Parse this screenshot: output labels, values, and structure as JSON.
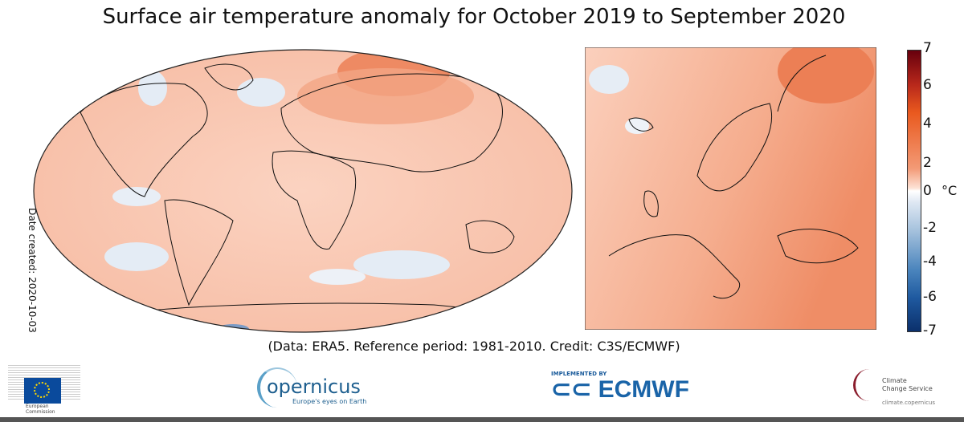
{
  "title": "Surface air temperature anomaly for October 2019 to September 2020",
  "date_created": "Date created: 2020-10-03",
  "caption": "(Data: ERA5.  Reference period: 1981-2010.  Credit: C3S/ECMWF)",
  "maps": [
    {
      "region": "World",
      "dominant_anomaly": "warm"
    },
    {
      "region": "Europe",
      "dominant_anomaly": "warm"
    }
  ],
  "colorbar": {
    "ticks": [
      "7",
      "6",
      "4",
      "2",
      "0",
      "-2",
      "-4",
      "-6",
      "-7"
    ],
    "tick_values": [
      7,
      6,
      4,
      2,
      0,
      -2,
      -4,
      -6,
      -7
    ],
    "unit": "°C",
    "range": [
      -7,
      7
    ],
    "colors": {
      "max": "#67000d",
      "warm": "#e9591e",
      "zero": "#ffffff",
      "cool": "#4b85bd",
      "min": "#0b306b"
    }
  },
  "logos": {
    "ec": {
      "line1": "European",
      "line2": "Commission"
    },
    "copernicus": {
      "name": "opernicus",
      "tagline": "Europe's eyes on Earth"
    },
    "ecmwf": {
      "implemented": "IMPLEMENTED BY",
      "name": "ECMWF"
    },
    "c3s": {
      "line1": "Climate",
      "line2": "Change Service",
      "url": "climate.copernicus"
    }
  }
}
